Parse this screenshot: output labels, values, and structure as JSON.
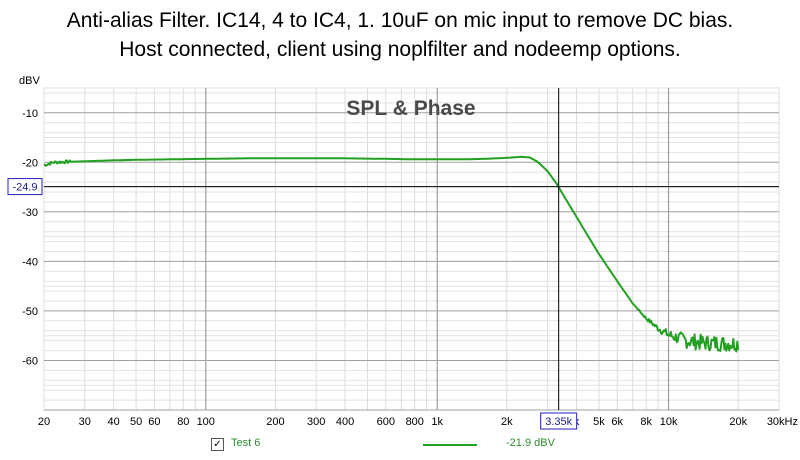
{
  "title": {
    "line1": "Anti-alias Filter. IC14, 4 to IC4, 1. 10uF on mic input to remove DC bias.",
    "line2": "Host connected, client using noplfilter and nodeemp options."
  },
  "chart_data": {
    "type": "line",
    "title": "SPL & Phase",
    "ylabel": "dBV",
    "xlabel": "",
    "x_scale": "log",
    "xlim": [
      20,
      30000
    ],
    "ylim": [
      -70,
      -5
    ],
    "grid": true,
    "x_ticks": [
      {
        "value": 20,
        "label": "20"
      },
      {
        "value": 30,
        "label": "30"
      },
      {
        "value": 40,
        "label": "40"
      },
      {
        "value": 50,
        "label": "50"
      },
      {
        "value": 60,
        "label": "60"
      },
      {
        "value": 80,
        "label": "80"
      },
      {
        "value": 100,
        "label": "100"
      },
      {
        "value": 200,
        "label": "200"
      },
      {
        "value": 300,
        "label": "300"
      },
      {
        "value": 400,
        "label": "400"
      },
      {
        "value": 600,
        "label": "600"
      },
      {
        "value": 800,
        "label": "800"
      },
      {
        "value": 1000,
        "label": "1k"
      },
      {
        "value": 2000,
        "label": "2k"
      },
      {
        "value": 4000,
        "label": "k"
      },
      {
        "value": 5000,
        "label": "5k"
      },
      {
        "value": 6000,
        "label": "6k"
      },
      {
        "value": 8000,
        "label": "8k"
      },
      {
        "value": 10000,
        "label": "10k"
      },
      {
        "value": 20000,
        "label": "20k"
      },
      {
        "value": 30000,
        "label": "30kHz"
      }
    ],
    "y_ticks": [
      {
        "value": -10,
        "label": "-10"
      },
      {
        "value": -20,
        "label": "-20"
      },
      {
        "value": -30,
        "label": "-30"
      },
      {
        "value": -40,
        "label": "-40"
      },
      {
        "value": -50,
        "label": "-50"
      },
      {
        "value": -60,
        "label": "-60"
      }
    ],
    "cursor": {
      "x": 3350,
      "x_label": "3.35k",
      "y": -24.9,
      "y_label": "-24.9"
    },
    "series": [
      {
        "name": "Test 6",
        "color": "#22a022",
        "x": [
          20,
          22,
          25,
          30,
          40,
          50,
          70,
          100,
          150,
          200,
          300,
          400,
          600,
          800,
          1000,
          1300,
          1600,
          2000,
          2300,
          2500,
          2700,
          3000,
          3300,
          3600,
          4000,
          4500,
          5000,
          6000,
          7000,
          8000,
          9000,
          10000,
          11000,
          12000,
          13000,
          14000,
          16000,
          18000,
          20000
        ],
        "y": [
          -20.6,
          -20.0,
          -19.9,
          -19.8,
          -19.6,
          -19.5,
          -19.4,
          -19.3,
          -19.2,
          -19.2,
          -19.2,
          -19.2,
          -19.3,
          -19.4,
          -19.4,
          -19.4,
          -19.3,
          -19.1,
          -18.9,
          -19.0,
          -19.8,
          -21.8,
          -24.5,
          -27.5,
          -31.0,
          -35.0,
          -38.5,
          -44.0,
          -48.5,
          -51.5,
          -53.5,
          -54.8,
          -55.5,
          -56.0,
          -56.2,
          -56.4,
          -56.5,
          -56.6,
          -56.6
        ]
      }
    ]
  },
  "legend": {
    "check": "✓",
    "name": "Test 6",
    "value": "-21.9 dBV"
  }
}
